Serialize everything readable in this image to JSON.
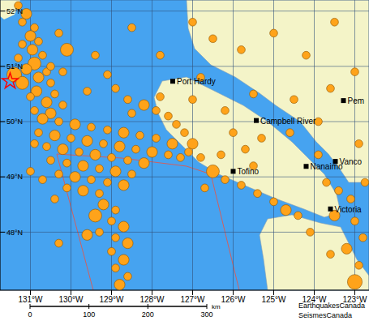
{
  "chart_data": {
    "type": "scatter",
    "color": "#ffa31a",
    "marker": "circle",
    "grid": true,
    "xlim": [
      -131.75,
      -122.65
    ],
    "ylim": [
      46.95,
      52.2
    ],
    "xticks": [
      {
        "value": -131,
        "label": "131°W"
      },
      {
        "value": -130,
        "label": "130°W"
      },
      {
        "value": -129,
        "label": "129°W"
      },
      {
        "value": -128,
        "label": "128°W"
      },
      {
        "value": -127,
        "label": "127°W"
      },
      {
        "value": -126,
        "label": "126°W"
      },
      {
        "value": -125,
        "label": "125°W"
      },
      {
        "value": -124,
        "label": "124°W"
      },
      {
        "value": -123,
        "label": "123°W"
      }
    ],
    "yticks": [
      {
        "value": 48,
        "label": "48°N"
      },
      {
        "value": 49,
        "label": "49°N"
      },
      {
        "value": 50,
        "label": "50°N"
      },
      {
        "value": 51,
        "label": "51°N"
      },
      {
        "value": 52,
        "label": "52°N"
      }
    ],
    "points": [
      {
        "x": -131.3,
        "y": 52.1,
        "size": 2
      },
      {
        "x": -131.1,
        "y": 51.95,
        "size": 3
      },
      {
        "x": -131.2,
        "y": 51.8,
        "size": 2
      },
      {
        "x": -130.9,
        "y": 51.7,
        "size": 2
      },
      {
        "x": -131.0,
        "y": 51.55,
        "size": 3
      },
      {
        "x": -130.8,
        "y": 51.45,
        "size": 2
      },
      {
        "x": -131.2,
        "y": 51.4,
        "size": 2
      },
      {
        "x": -130.95,
        "y": 51.3,
        "size": 3
      },
      {
        "x": -130.7,
        "y": 51.2,
        "size": 2
      },
      {
        "x": -131.3,
        "y": 51.15,
        "size": 2
      },
      {
        "x": -130.9,
        "y": 51.05,
        "size": 4
      },
      {
        "x": -131.1,
        "y": 50.95,
        "size": 3
      },
      {
        "x": -130.6,
        "y": 50.9,
        "size": 2
      },
      {
        "x": -131.4,
        "y": 50.85,
        "size": 5
      },
      {
        "x": -130.8,
        "y": 50.8,
        "size": 3
      },
      {
        "x": -131.2,
        "y": 50.7,
        "size": 4
      },
      {
        "x": -130.5,
        "y": 50.7,
        "size": 2
      },
      {
        "x": -130.85,
        "y": 50.55,
        "size": 3
      },
      {
        "x": -130.4,
        "y": 50.5,
        "size": 2
      },
      {
        "x": -131.0,
        "y": 50.45,
        "size": 2
      },
      {
        "x": -130.6,
        "y": 50.35,
        "size": 3
      },
      {
        "x": -130.2,
        "y": 50.3,
        "size": 2
      },
      {
        "x": -130.9,
        "y": 50.2,
        "size": 2
      },
      {
        "x": -130.5,
        "y": 50.15,
        "size": 3
      },
      {
        "x": -130.1,
        "y": 51.3,
        "size": 4
      },
      {
        "x": -130.3,
        "y": 51.6,
        "size": 2
      },
      {
        "x": -130.5,
        "y": 51.0,
        "size": 2
      },
      {
        "x": -130.2,
        "y": 50.9,
        "size": 2
      },
      {
        "x": -130.7,
        "y": 50.05,
        "size": 3
      },
      {
        "x": -130.3,
        "y": 50.0,
        "size": 2
      },
      {
        "x": -129.9,
        "y": 49.95,
        "size": 3
      },
      {
        "x": -129.5,
        "y": 49.9,
        "size": 2
      },
      {
        "x": -129.1,
        "y": 49.85,
        "size": 2
      },
      {
        "x": -128.7,
        "y": 49.8,
        "size": 3
      },
      {
        "x": -128.3,
        "y": 49.75,
        "size": 2
      },
      {
        "x": -127.9,
        "y": 49.7,
        "size": 2
      },
      {
        "x": -127.5,
        "y": 49.6,
        "size": 3
      },
      {
        "x": -130.8,
        "y": 49.8,
        "size": 2
      },
      {
        "x": -130.4,
        "y": 49.75,
        "size": 3
      },
      {
        "x": -130.0,
        "y": 49.7,
        "size": 2
      },
      {
        "x": -129.6,
        "y": 49.65,
        "size": 3
      },
      {
        "x": -129.2,
        "y": 49.6,
        "size": 2
      },
      {
        "x": -128.8,
        "y": 49.55,
        "size": 3
      },
      {
        "x": -128.4,
        "y": 49.5,
        "size": 2
      },
      {
        "x": -128.0,
        "y": 49.45,
        "size": 3
      },
      {
        "x": -127.6,
        "y": 49.4,
        "size": 2
      },
      {
        "x": -127.3,
        "y": 49.35,
        "size": 2
      },
      {
        "x": -130.6,
        "y": 49.55,
        "size": 2
      },
      {
        "x": -130.2,
        "y": 49.5,
        "size": 3
      },
      {
        "x": -129.8,
        "y": 49.45,
        "size": 2
      },
      {
        "x": -129.4,
        "y": 49.4,
        "size": 3
      },
      {
        "x": -129.0,
        "y": 49.35,
        "size": 2
      },
      {
        "x": -128.6,
        "y": 49.3,
        "size": 2
      },
      {
        "x": -128.2,
        "y": 49.25,
        "size": 3
      },
      {
        "x": -130.5,
        "y": 49.3,
        "size": 2
      },
      {
        "x": -130.1,
        "y": 49.25,
        "size": 2
      },
      {
        "x": -129.7,
        "y": 49.2,
        "size": 3
      },
      {
        "x": -129.3,
        "y": 49.15,
        "size": 2
      },
      {
        "x": -128.9,
        "y": 49.1,
        "size": 3
      },
      {
        "x": -128.5,
        "y": 49.05,
        "size": 2
      },
      {
        "x": -130.3,
        "y": 49.05,
        "size": 2
      },
      {
        "x": -129.9,
        "y": 49.0,
        "size": 3
      },
      {
        "x": -129.5,
        "y": 48.95,
        "size": 2
      },
      {
        "x": -129.1,
        "y": 48.9,
        "size": 2
      },
      {
        "x": -128.7,
        "y": 48.85,
        "size": 3
      },
      {
        "x": -130.7,
        "y": 48.95,
        "size": 2
      },
      {
        "x": -131.0,
        "y": 49.1,
        "size": 2
      },
      {
        "x": -130.9,
        "y": 49.6,
        "size": 2
      },
      {
        "x": -130.1,
        "y": 48.8,
        "size": 2
      },
      {
        "x": -129.7,
        "y": 48.75,
        "size": 3
      },
      {
        "x": -129.3,
        "y": 48.7,
        "size": 2
      },
      {
        "x": -130.4,
        "y": 48.6,
        "size": 2
      },
      {
        "x": -128.6,
        "y": 50.4,
        "size": 2
      },
      {
        "x": -128.2,
        "y": 50.3,
        "size": 3
      },
      {
        "x": -127.9,
        "y": 50.2,
        "size": 2
      },
      {
        "x": -127.6,
        "y": 50.1,
        "size": 2
      },
      {
        "x": -128.5,
        "y": 50.15,
        "size": 2
      },
      {
        "x": -127.4,
        "y": 49.95,
        "size": 2
      },
      {
        "x": -127.2,
        "y": 49.8,
        "size": 2
      },
      {
        "x": -127.0,
        "y": 49.6,
        "size": 3
      },
      {
        "x": -127.1,
        "y": 49.45,
        "size": 2
      },
      {
        "x": -126.8,
        "y": 49.35,
        "size": 2
      },
      {
        "x": -128.9,
        "y": 50.6,
        "size": 2
      },
      {
        "x": -129.1,
        "y": 50.85,
        "size": 2
      },
      {
        "x": -129.4,
        "y": 51.2,
        "size": 2
      },
      {
        "x": -129.6,
        "y": 50.55,
        "size": 2
      },
      {
        "x": -127.8,
        "y": 50.45,
        "size": 2
      },
      {
        "x": -126.5,
        "y": 49.1,
        "size": 4
      },
      {
        "x": -126.2,
        "y": 48.95,
        "size": 2
      },
      {
        "x": -125.8,
        "y": 48.85,
        "size": 2
      },
      {
        "x": -126.7,
        "y": 48.8,
        "size": 2
      },
      {
        "x": -125.4,
        "y": 48.7,
        "size": 2
      },
      {
        "x": -125.0,
        "y": 48.55,
        "size": 2
      },
      {
        "x": -124.7,
        "y": 48.4,
        "size": 3
      },
      {
        "x": -126.3,
        "y": 49.4,
        "size": 2
      },
      {
        "x": -125.7,
        "y": 49.5,
        "size": 2
      },
      {
        "x": -125.5,
        "y": 49.2,
        "size": 2
      },
      {
        "x": -129.2,
        "y": 48.5,
        "size": 3
      },
      {
        "x": -128.9,
        "y": 48.4,
        "size": 2
      },
      {
        "x": -129.4,
        "y": 48.3,
        "size": 4
      },
      {
        "x": -129.0,
        "y": 48.2,
        "size": 2
      },
      {
        "x": -128.7,
        "y": 48.1,
        "size": 3
      },
      {
        "x": -129.3,
        "y": 48.0,
        "size": 2
      },
      {
        "x": -128.9,
        "y": 47.9,
        "size": 2
      },
      {
        "x": -128.6,
        "y": 47.8,
        "size": 3
      },
      {
        "x": -129.0,
        "y": 47.65,
        "size": 2
      },
      {
        "x": -128.7,
        "y": 47.5,
        "size": 3
      },
      {
        "x": -128.9,
        "y": 47.35,
        "size": 2
      },
      {
        "x": -128.6,
        "y": 47.2,
        "size": 2
      },
      {
        "x": -128.8,
        "y": 47.05,
        "size": 3
      },
      {
        "x": -130.3,
        "y": 47.8,
        "size": 2
      },
      {
        "x": -129.6,
        "y": 47.95,
        "size": 3
      },
      {
        "x": -123.7,
        "y": 48.9,
        "size": 2
      },
      {
        "x": -123.4,
        "y": 48.75,
        "size": 2
      },
      {
        "x": -123.1,
        "y": 48.6,
        "size": 2
      },
      {
        "x": -123.5,
        "y": 48.3,
        "size": 3
      },
      {
        "x": -123.0,
        "y": 48.2,
        "size": 2
      },
      {
        "x": -122.8,
        "y": 47.9,
        "size": 2
      },
      {
        "x": -123.2,
        "y": 47.7,
        "size": 3
      },
      {
        "x": -122.9,
        "y": 47.4,
        "size": 2
      },
      {
        "x": -123.0,
        "y": 47.1,
        "size": 5
      },
      {
        "x": -123.6,
        "y": 47.6,
        "size": 2
      },
      {
        "x": -124.1,
        "y": 48.0,
        "size": 2
      },
      {
        "x": -124.4,
        "y": 48.3,
        "size": 2
      },
      {
        "x": -122.75,
        "y": 48.9,
        "size": 2
      },
      {
        "x": -123.9,
        "y": 49.4,
        "size": 2
      },
      {
        "x": -127.0,
        "y": 51.8,
        "size": 2
      },
      {
        "x": -126.5,
        "y": 51.5,
        "size": 2
      },
      {
        "x": -125.8,
        "y": 51.3,
        "size": 2
      },
      {
        "x": -125.0,
        "y": 51.6,
        "size": 2
      },
      {
        "x": -124.2,
        "y": 51.2,
        "size": 2
      },
      {
        "x": -123.5,
        "y": 51.8,
        "size": 2
      },
      {
        "x": -123.0,
        "y": 50.9,
        "size": 2
      },
      {
        "x": -123.6,
        "y": 50.6,
        "size": 2
      },
      {
        "x": -124.5,
        "y": 50.4,
        "size": 2
      },
      {
        "x": -125.5,
        "y": 50.5,
        "size": 2
      },
      {
        "x": -126.2,
        "y": 50.2,
        "size": 2
      },
      {
        "x": -127.0,
        "y": 50.4,
        "size": 2
      },
      {
        "x": -126.0,
        "y": 49.8,
        "size": 2
      },
      {
        "x": -125.3,
        "y": 49.7,
        "size": 2
      },
      {
        "x": -124.6,
        "y": 49.8,
        "size": 2
      },
      {
        "x": -123.9,
        "y": 50.0,
        "size": 2
      },
      {
        "x": -122.9,
        "y": 49.6,
        "size": 2
      },
      {
        "x": -126.8,
        "y": 50.8,
        "size": 2
      },
      {
        "x": -127.8,
        "y": 51.2,
        "size": 2
      },
      {
        "x": -128.5,
        "y": 51.7,
        "size": 2
      }
    ],
    "size_range": [
      1,
      5
    ],
    "highlight": {
      "x": -131.5,
      "y": 50.73,
      "color": "#ff0000",
      "marker": "star"
    },
    "places": [
      {
        "label": "Port Hardy",
        "x": -127.49,
        "y": 50.73
      },
      {
        "label": "Campbell River",
        "x": -125.43,
        "y": 50.02
      },
      {
        "label": "Tofino",
        "x": -126.0,
        "y": 49.1
      },
      {
        "label": "Nanaimo",
        "x": -124.2,
        "y": 49.19
      },
      {
        "label": "Vanco",
        "x": -123.48,
        "y": 49.28
      },
      {
        "label": "Victoria",
        "x": -123.6,
        "y": 48.42
      },
      {
        "label": "Pem",
        "x": -123.28,
        "y": 50.38
      }
    ],
    "scale_bar": {
      "ticks": [
        0,
        100,
        200,
        300
      ],
      "unit": "km"
    },
    "credits": [
      "EarthquakesCanada",
      "SeismesCanada"
    ]
  }
}
